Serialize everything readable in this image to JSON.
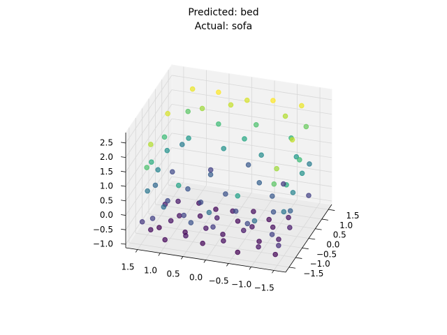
{
  "chart_data": {
    "type": "scatter3d",
    "title": "Predicted: bed",
    "subtitle": "Actual: sofa",
    "colormap": "viridis",
    "xlim": [
      -1.76,
      1.76
    ],
    "ylim": [
      -1.76,
      1.76
    ],
    "zlim": [
      -1.12,
      2.86
    ],
    "xticks": [
      1.5,
      {
        "value": 1,
        "label": "1.0"
      },
      0.5,
      {
        "value": 0,
        "label": "0.0"
      },
      {
        "value": -0.5,
        "label": "−0.5"
      },
      {
        "value": -1,
        "label": "−1.0"
      },
      {
        "value": -1.5,
        "label": "−1.5"
      }
    ],
    "yticks": [
      {
        "value": -1.5,
        "label": "−1.5"
      },
      {
        "value": -1,
        "label": "−1.0"
      },
      {
        "value": -0.5,
        "label": "−0.5"
      },
      {
        "value": 0,
        "label": "0.0"
      },
      0.5,
      {
        "value": 1,
        "label": "1.0"
      },
      1.5
    ],
    "zticks": [
      {
        "value": -1,
        "label": "−1.0"
      },
      {
        "value": -0.5,
        "label": "−0.5"
      },
      {
        "value": 0,
        "label": "0.0"
      },
      0.5,
      {
        "value": 1,
        "label": "1.0"
      },
      1.5,
      {
        "value": 2,
        "label": "2.0"
      },
      2.5
    ],
    "grid": true,
    "x": [
      -1.4,
      -1.0,
      -0.6,
      -0.2,
      0.2,
      0.6,
      1.0,
      1.4,
      -1.3,
      -0.9,
      -0.5,
      -0.1,
      0.3,
      0.7,
      1.1,
      1.3,
      -1.4,
      -1.0,
      -0.6,
      -0.2,
      0.2,
      0.6,
      1.0,
      1.4,
      -1.2,
      -0.8,
      -0.4,
      0.0,
      0.4,
      0.8,
      1.2,
      -1.3,
      -0.7,
      0.0,
      0.7,
      1.3,
      -1.1,
      -0.3,
      0.5,
      1.2,
      -0.9,
      0.1,
      0.9,
      -0.5,
      0.6,
      -1.5,
      -1.5,
      -1.5,
      1.5,
      1.5,
      1.5,
      -1.0,
      0.0,
      1.0,
      -1.2,
      -0.4,
      0.4,
      1.2,
      -1.4,
      1.4,
      -1.5,
      -1.5,
      1.5,
      1.5,
      -1.0,
      -0.2,
      0.6,
      1.3,
      -1.3,
      0.0,
      -0.6,
      0.7,
      -1.4,
      1.4,
      -1.2,
      -0.6,
      0.0,
      0.6,
      1.2,
      -0.9,
      0.3,
      0.9,
      -1.4,
      1.4,
      -1.4,
      1.4,
      -1.5,
      -1.5,
      1.5,
      1.5,
      -0.8,
      0.8,
      0.0,
      -1.5,
      1.5,
      0.4
    ],
    "y": [
      -1.3,
      -1.2,
      -1.4,
      -1.1,
      -1.3,
      -1.2,
      -1.4,
      -1.1,
      -0.7,
      -0.8,
      -0.6,
      -0.8,
      -0.7,
      -0.9,
      -0.6,
      -0.8,
      -0.2,
      -0.1,
      -0.3,
      0.0,
      -0.2,
      -0.1,
      -0.3,
      0.0,
      0.4,
      0.3,
      0.5,
      0.3,
      0.4,
      0.5,
      0.3,
      -1.2,
      -1.0,
      -1.2,
      -1.0,
      -1.3,
      -0.4,
      -0.5,
      -0.4,
      -0.5,
      0.2,
      0.1,
      0.0,
      0.6,
      0.7,
      -1.0,
      -0.3,
      0.4,
      -1.0,
      -0.2,
      0.5,
      -1.5,
      -1.5,
      -1.5,
      1.0,
      1.1,
      1.0,
      1.1,
      1.3,
      1.3,
      -0.8,
      0.2,
      -0.7,
      0.3,
      1.3,
      1.4,
      1.3,
      1.4,
      1.4,
      1.2,
      -1.4,
      -1.4,
      -1.4,
      -1.4,
      1.4,
      1.3,
      1.4,
      1.3,
      1.4,
      1.2,
      1.2,
      1.1,
      -1.2,
      -1.1,
      0.0,
      0.2,
      -1.4,
      0.9,
      -1.4,
      0.9,
      1.4,
      1.4,
      1.5,
      -0.5,
      -0.4,
      -1.5
    ],
    "z": [
      -0.9,
      -0.8,
      -0.95,
      -0.85,
      -0.9,
      -0.8,
      -0.9,
      -0.85,
      -0.8,
      -0.9,
      -0.75,
      -0.85,
      -0.8,
      -0.9,
      -0.8,
      -0.95,
      -0.7,
      -0.85,
      -0.8,
      -0.9,
      -0.75,
      -0.85,
      -0.8,
      -0.7,
      -0.8,
      -0.9,
      -0.85,
      -0.8,
      -0.9,
      -0.85,
      -0.75,
      -0.3,
      -0.2,
      -0.35,
      -0.25,
      -0.3,
      -0.1,
      -0.2,
      -0.15,
      -0.2,
      0.0,
      -0.1,
      -0.05,
      0.1,
      0.05,
      0.4,
      0.6,
      0.8,
      0.4,
      0.6,
      0.8,
      0.3,
      0.35,
      0.3,
      0.9,
      0.7,
      0.8,
      0.9,
      0.5,
      0.5,
      1.2,
      1.4,
      1.2,
      1.4,
      1.3,
      1.5,
      1.4,
      1.6,
      1.7,
      1.1,
      1.0,
      1.05,
      1.6,
      1.5,
      2.4,
      2.5,
      2.3,
      2.5,
      2.4,
      2.1,
      2.2,
      2.0,
      2.0,
      2.1,
      2.2,
      2.3,
      -0.5,
      -0.3,
      -0.4,
      -0.2,
      -0.4,
      -0.3,
      0.0,
      0.1,
      0.2,
      -0.1
    ]
  }
}
